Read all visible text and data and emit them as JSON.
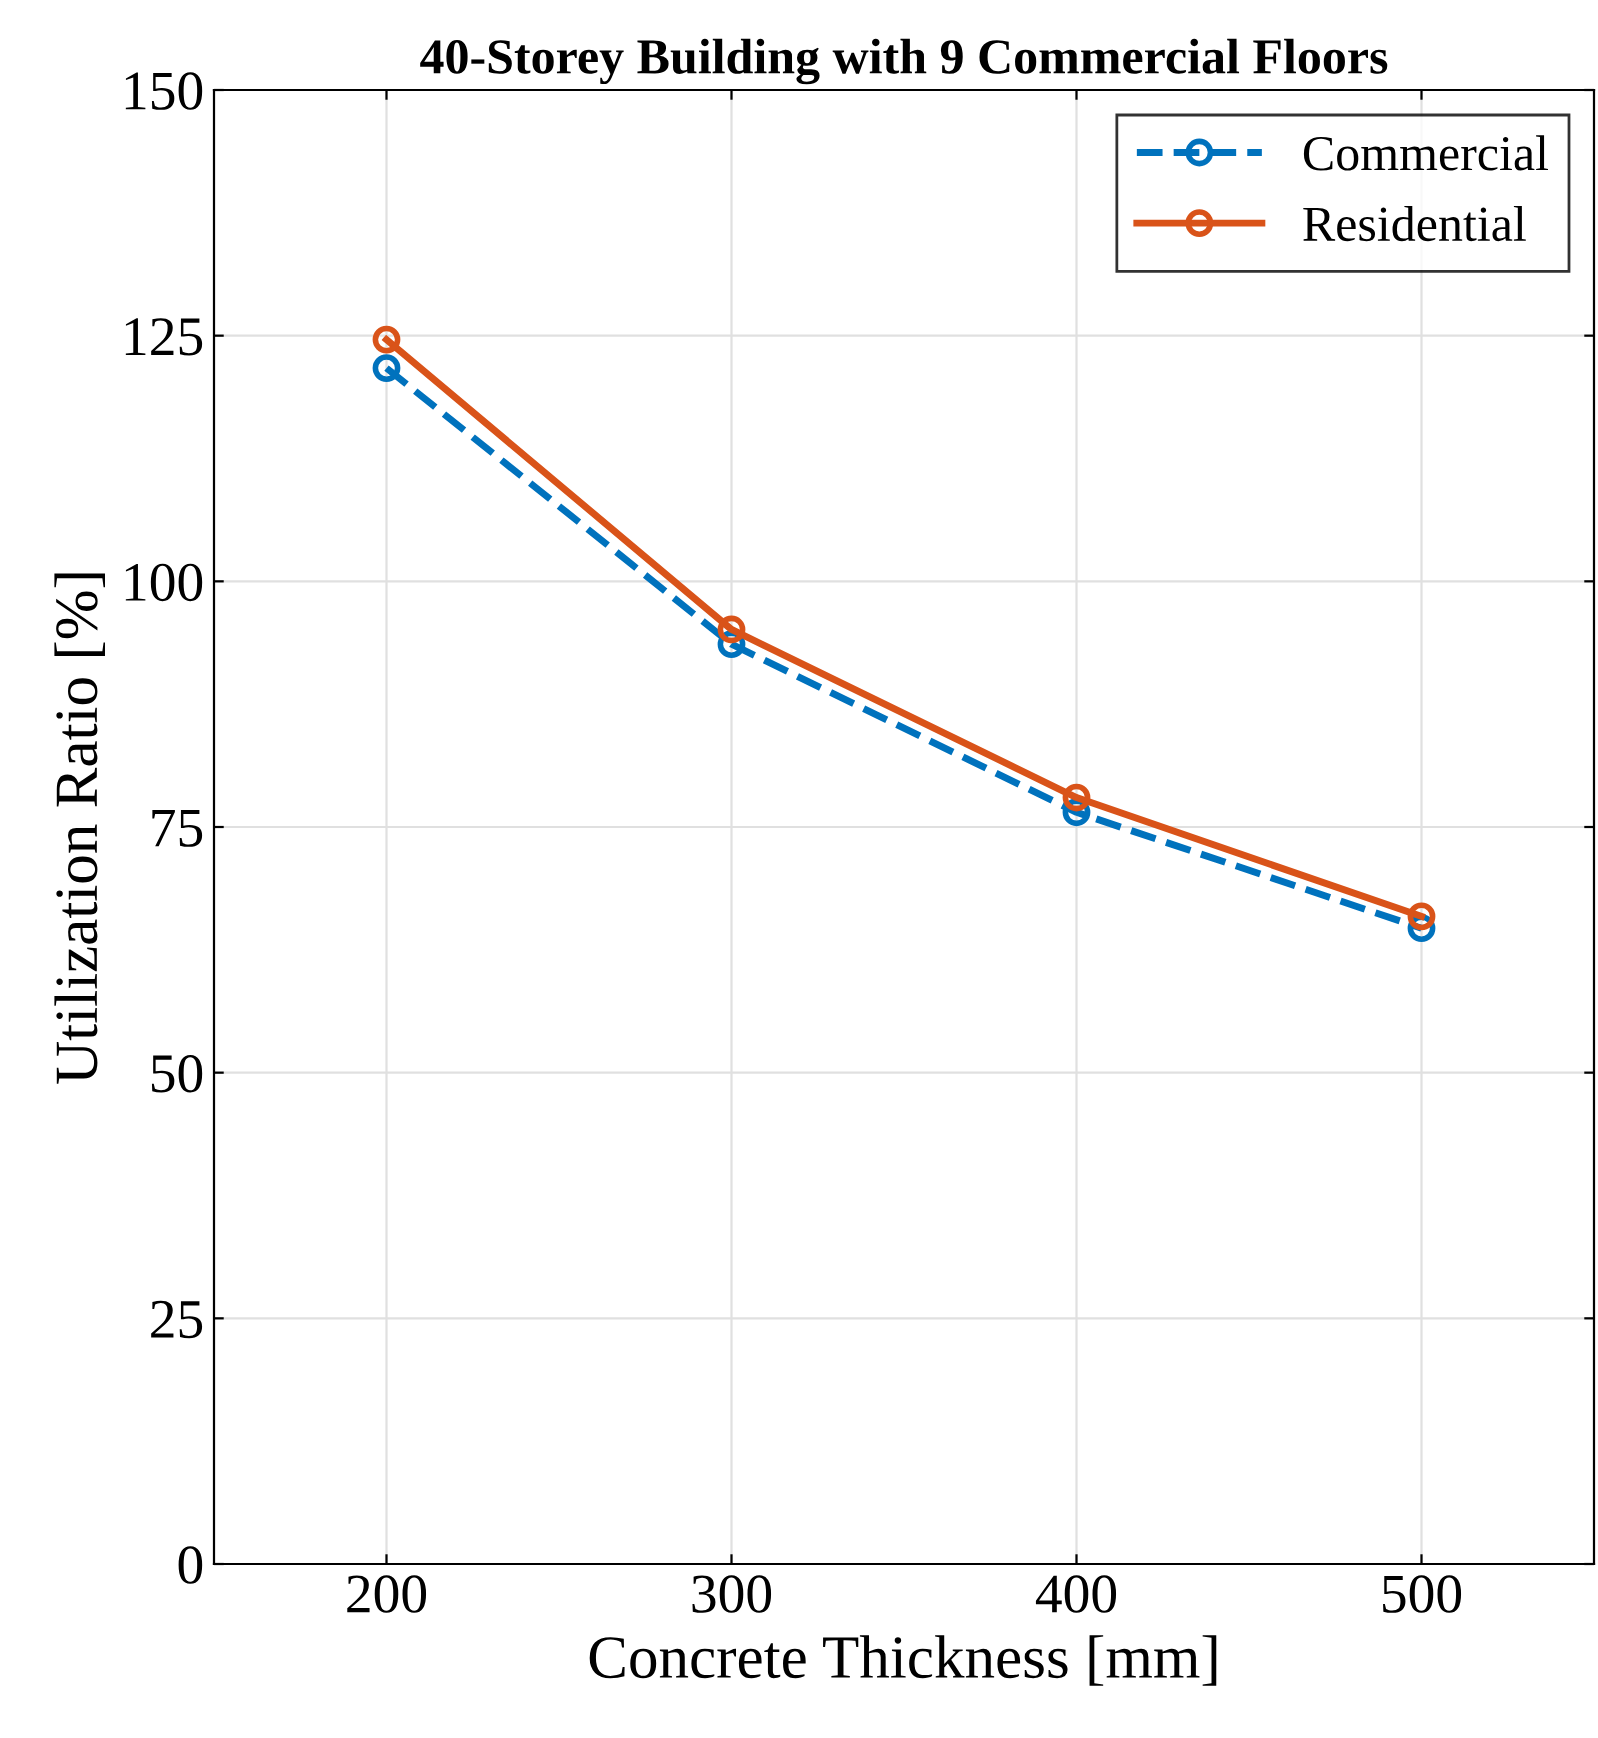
{
  "chart_data": {
    "type": "line",
    "title": "40-Storey Building with 9 Commercial Floors",
    "xlabel": "Concrete Thickness [mm]",
    "ylabel": "Utilization Ratio [%]",
    "x": [
      200,
      300,
      400,
      500
    ],
    "series": [
      {
        "name": "Commercial",
        "color": "#0072bd",
        "line_style": "dashed",
        "values": [
          121.7,
          93.6,
          76.5,
          64.7
        ]
      },
      {
        "name": "Residential",
        "color": "#d95319",
        "line_style": "solid",
        "values": [
          124.6,
          95.1,
          78.0,
          65.9
        ]
      }
    ],
    "xlim": [
      150,
      550
    ],
    "xticks": [
      200,
      300,
      400,
      500
    ],
    "ylim": [
      0,
      150
    ],
    "yticks": [
      0,
      25,
      50,
      75,
      100,
      125,
      150
    ],
    "grid": true,
    "legend": "top right",
    "marker": "circle"
  }
}
